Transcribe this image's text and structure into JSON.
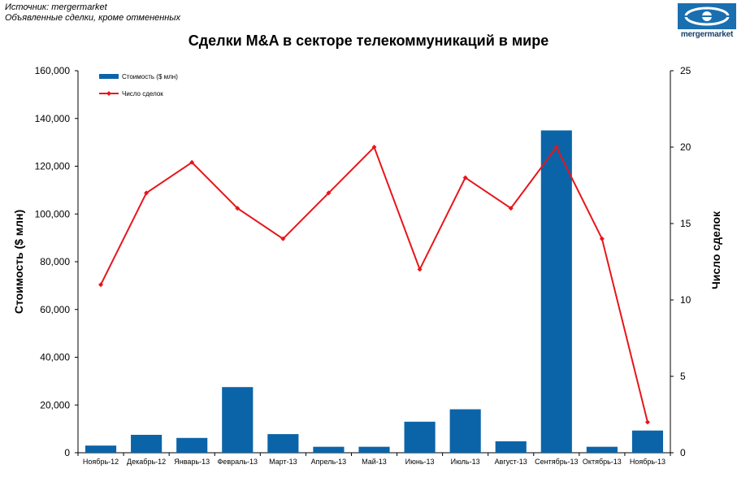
{
  "source_line1": "Источник: mergermarket",
  "source_line2": "Объявленные сделки, кроме отмененных",
  "logo_text": "mergermarket",
  "chart_data": {
    "type": "bar",
    "title": "Сделки M&A в секторе телекоммуникаций в мире",
    "categories": [
      "Ноябрь-12",
      "Декабрь-12",
      "Январь-13",
      "Февраль-13",
      "Март-13",
      "Апрель-13",
      "Май-13",
      "Июнь-13",
      "Июль-13",
      "Август-13",
      "Сентябрь-13",
      "Октябрь-13",
      "Ноябрь-13"
    ],
    "series": [
      {
        "name": "Стоимость ($ млн)",
        "type": "bar",
        "axis": "left",
        "color": "#0b64a8",
        "values": [
          3000,
          7500,
          6200,
          27500,
          7800,
          2500,
          2500,
          13000,
          18200,
          4800,
          135000,
          2500,
          9300
        ]
      },
      {
        "name": "Число сделок",
        "type": "line",
        "axis": "right",
        "color": "#e8151b",
        "values": [
          11,
          17,
          19,
          16,
          14,
          17,
          20,
          12,
          18,
          16,
          20,
          14,
          2
        ]
      }
    ],
    "ylabel": "Стоимость ($ млн)",
    "y2label": "Число сделок",
    "ylim": [
      0,
      160000
    ],
    "y2lim": [
      0,
      25
    ],
    "yticks": [
      "0",
      "20,000",
      "40,000",
      "60,000",
      "80,000",
      "100,000",
      "120,000",
      "140,000",
      "160,000"
    ],
    "y2ticks": [
      "0",
      "5",
      "10",
      "15",
      "20",
      "25"
    ],
    "grid": false,
    "legend_position": "top-left"
  }
}
